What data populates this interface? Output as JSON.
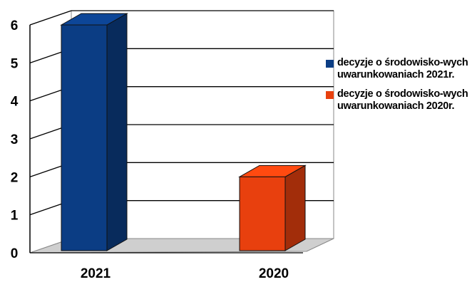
{
  "chart_data": {
    "type": "bar",
    "categories": [
      "2021",
      "2020"
    ],
    "series": [
      {
        "name": "decyzje o środowisko-wych uwarunkowaniach 2021r.",
        "values": [
          6,
          null
        ],
        "color": "#0b3d84"
      },
      {
        "name": "decyzje o środowisko-wych uwarunkowaniach 2020r.",
        "values": [
          null,
          2
        ],
        "color": "#e8400e"
      }
    ],
    "yticks": [
      "0",
      "1",
      "2",
      "3",
      "4",
      "5",
      "6"
    ],
    "ylim": [
      0,
      6
    ],
    "grid": true,
    "legend_position": "right",
    "style": "3d"
  },
  "legend": [
    {
      "label": "decyzje o środowisko-wych uwarunkowaniach 2021r.",
      "color": "#0b3d84"
    },
    {
      "label": "decyzje o środowisko-wych uwarunkowaniach 2020r.",
      "color": "#e8400e"
    }
  ]
}
